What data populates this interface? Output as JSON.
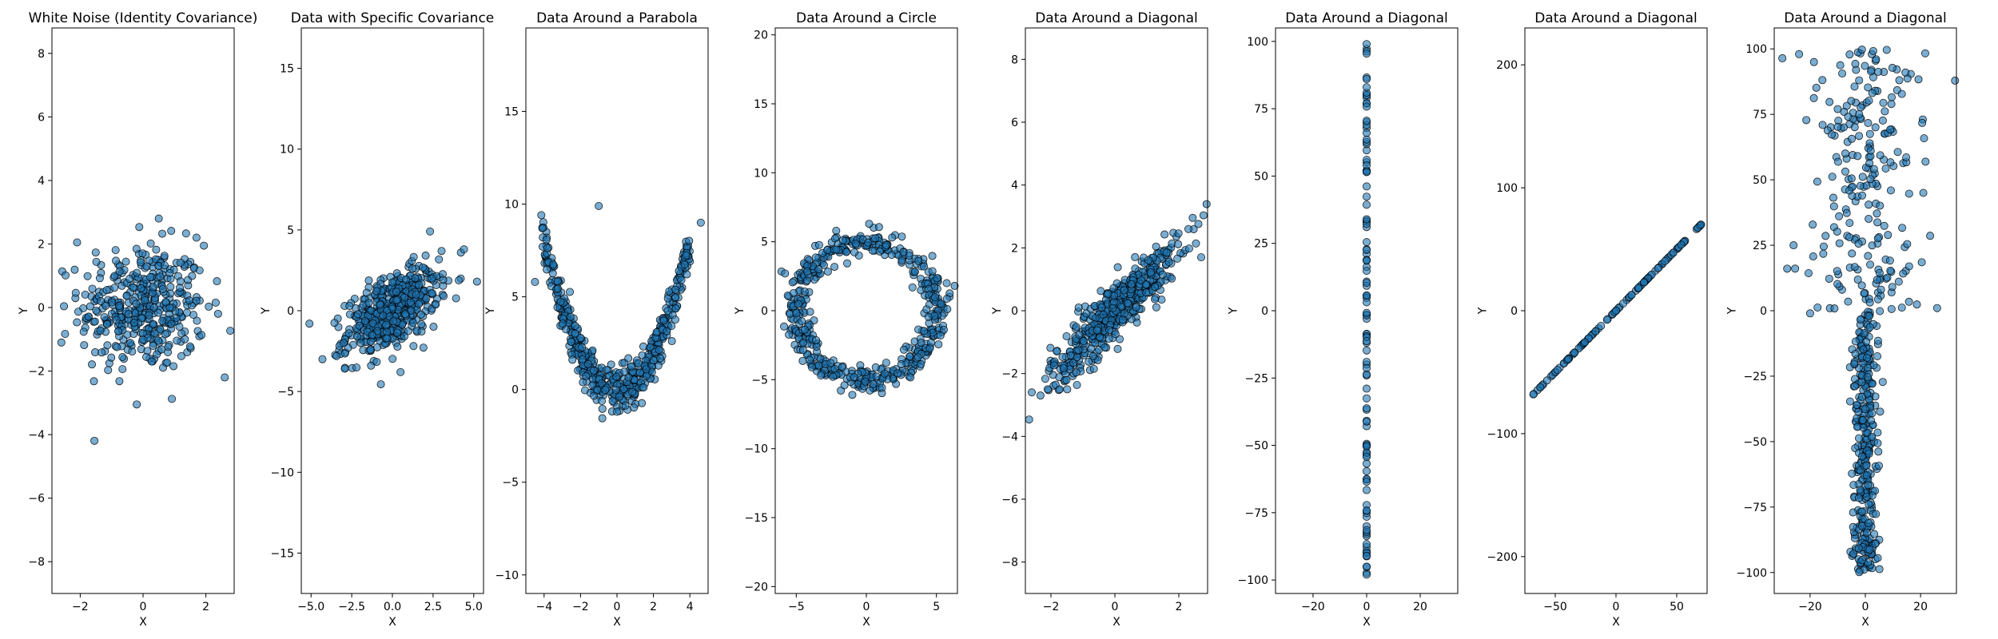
{
  "figure": {
    "marker_color": "#1f77b4",
    "edge_color": "#000000",
    "alpha": 0.6
  },
  "chart_data": [
    {
      "type": "scatter",
      "title": "White Noise (Identity Covariance)",
      "xlabel": "X",
      "ylabel": "Y",
      "xlim": [
        -2.9,
        2.9
      ],
      "ylim": [
        -9,
        8.8
      ],
      "xticks": [
        -2,
        0,
        2
      ],
      "yticks": [
        -8,
        -6,
        -4,
        -2,
        0,
        2,
        4,
        6,
        8
      ],
      "xtick_labels": [
        "−2",
        "0",
        "2"
      ],
      "ytick_labels": [
        "−8",
        "−6",
        "−4",
        "−2",
        "0",
        "2",
        "4",
        "6",
        "8"
      ],
      "grid": false,
      "n_points": 400,
      "pattern": {
        "kind": "gaussian",
        "mx": 0,
        "my": 0,
        "sx": 1,
        "sy": 1,
        "rho": 0
      },
      "points": [
        [
          -2.1,
          2.05
        ],
        [
          0.5,
          2.8
        ],
        [
          2.6,
          -2.2
        ],
        [
          -0.2,
          -3.05
        ],
        [
          1.7,
          2.2
        ],
        [
          -2.6,
          -1.1
        ]
      ]
    },
    {
      "type": "scatter",
      "title": "Data with Specific Covariance",
      "xlabel": "X",
      "ylabel": "Y",
      "xlim": [
        -5.6,
        5.6
      ],
      "ylim": [
        -17.5,
        17.5
      ],
      "xticks": [
        -5,
        -2.5,
        0,
        2.5,
        5
      ],
      "yticks": [
        -15,
        -10,
        -5,
        0,
        5,
        10,
        15
      ],
      "xtick_labels": [
        "−5.0",
        "−2.5",
        "0.0",
        "2.5",
        "5.0"
      ],
      "ytick_labels": [
        "−15",
        "−10",
        "−5",
        "0",
        "5",
        "10",
        "15"
      ],
      "grid": false,
      "n_points": 500,
      "pattern": {
        "kind": "gaussian",
        "mx": 0,
        "my": 0,
        "sx": 1.4,
        "sy": 1.3,
        "rho": 0.55
      },
      "points": [
        [
          -5.1,
          -0.8
        ],
        [
          5.2,
          1.8
        ],
        [
          -4.3,
          -3.0
        ],
        [
          4.4,
          3.8
        ],
        [
          0.5,
          -3.8
        ]
      ]
    },
    {
      "type": "scatter",
      "title": "Data Around a Parabola",
      "xlabel": "X",
      "ylabel": "Y",
      "xlim": [
        -5.0,
        5.0
      ],
      "ylim": [
        -11,
        19.5
      ],
      "xticks": [
        -4,
        -2,
        0,
        2,
        4
      ],
      "yticks": [
        -10,
        -5,
        0,
        5,
        10,
        15
      ],
      "xtick_labels": [
        "−4",
        "−2",
        "0",
        "2",
        "4"
      ],
      "ytick_labels": [
        "−10",
        "−5",
        "0",
        "5",
        "10",
        "15"
      ],
      "grid": false,
      "n_points": 500,
      "pattern": {
        "kind": "parabola",
        "a": 0.5,
        "noise": 0.6
      },
      "points": [
        [
          -4.1,
          8.7
        ],
        [
          -1.0,
          9.9
        ],
        [
          4.6,
          9.0
        ],
        [
          -4.5,
          5.8
        ],
        [
          0.0,
          -1.2
        ]
      ]
    },
    {
      "type": "scatter",
      "title": "Data Around a Circle",
      "xlabel": "X",
      "ylabel": "Y",
      "xlim": [
        -6.5,
        6.5
      ],
      "ylim": [
        -20.5,
        20.5
      ],
      "xticks": [
        -5,
        0,
        5
      ],
      "yticks": [
        -20,
        -15,
        -10,
        -5,
        0,
        5,
        10,
        15,
        20
      ],
      "xtick_labels": [
        "−5",
        "0",
        "5"
      ],
      "ytick_labels": [
        "−20",
        "−15",
        "−10",
        "−5",
        "0",
        "5",
        "10",
        "15",
        "20"
      ],
      "grid": false,
      "n_points": 500,
      "pattern": {
        "kind": "circle",
        "r": 5,
        "noise": 0.45
      },
      "points": [
        [
          6.3,
          1.8
        ],
        [
          -5.8,
          2.7
        ],
        [
          0.2,
          6.3
        ],
        [
          -1.0,
          -6.1
        ]
      ]
    },
    {
      "type": "scatter",
      "title": "Data Around a Diagonal",
      "xlabel": "X",
      "ylabel": "Y",
      "xlim": [
        -2.8,
        2.9
      ],
      "ylim": [
        -9,
        9
      ],
      "xticks": [
        -2,
        0,
        2
      ],
      "yticks": [
        -8,
        -6,
        -4,
        -2,
        0,
        2,
        4,
        6,
        8
      ],
      "xtick_labels": [
        "−2",
        "0",
        "2"
      ],
      "ytick_labels": [
        "−8",
        "−6",
        "−4",
        "−2",
        "0",
        "2",
        "4",
        "6",
        "8"
      ],
      "grid": false,
      "n_points": 500,
      "pattern": {
        "kind": "diagonal",
        "slope": 1,
        "xsd": 1,
        "noise": 0.45
      },
      "points": [
        [
          -2.6,
          -2.6
        ],
        [
          2.7,
          1.7
        ],
        [
          2.3,
          2.6
        ],
        [
          -2.1,
          -2.5
        ]
      ]
    },
    {
      "type": "scatter",
      "title": "Data Around a Diagonal",
      "xlabel": "X",
      "ylabel": "Y",
      "xlim": [
        -34,
        34
      ],
      "ylim": [
        -105,
        105
      ],
      "xticks": [
        -20,
        0,
        20
      ],
      "yticks": [
        -100,
        -75,
        -50,
        -25,
        0,
        25,
        50,
        75,
        100
      ],
      "xtick_labels": [
        "−20",
        "0",
        "20"
      ],
      "ytick_labels": [
        "−100",
        "−75",
        "−50",
        "−25",
        "0",
        "25",
        "50",
        "75",
        "100"
      ],
      "grid": false,
      "n_points": 110,
      "pattern": {
        "kind": "vertical_line",
        "x": 0,
        "ymin": -98,
        "ymax": 99
      },
      "points": [
        [
          0,
          99
        ],
        [
          0,
          -98
        ],
        [
          0,
          86
        ],
        [
          0,
          -91
        ]
      ]
    },
    {
      "type": "scatter",
      "title": "Data Around a Diagonal",
      "xlabel": "X",
      "ylabel": "Y",
      "xlim": [
        -75,
        75
      ],
      "ylim": [
        -230,
        230
      ],
      "xticks": [
        -50,
        0,
        50
      ],
      "yticks": [
        -200,
        -100,
        0,
        100,
        200
      ],
      "xtick_labels": [
        "−50",
        "0",
        "50"
      ],
      "ytick_labels": [
        "−200",
        "−100",
        "0",
        "100",
        "200"
      ],
      "grid": false,
      "n_points": 110,
      "pattern": {
        "kind": "line",
        "slope": 1,
        "xmin": -68,
        "xmax": 70
      },
      "points": [
        [
          -68,
          -68
        ],
        [
          70,
          70
        ]
      ]
    },
    {
      "type": "scatter",
      "title": "Data Around a Diagonal",
      "xlabel": "X",
      "ylabel": "Y",
      "xlim": [
        -33,
        33
      ],
      "ylim": [
        -108,
        108
      ],
      "xticks": [
        -20,
        0,
        20
      ],
      "yticks": [
        -100,
        -75,
        -50,
        -25,
        0,
        25,
        50,
        75,
        100
      ],
      "xtick_labels": [
        "−20",
        "0",
        "20"
      ],
      "ytick_labels": [
        "−100",
        "−75",
        "−50",
        "−25",
        "0",
        "25",
        "50",
        "75",
        "100"
      ],
      "grid": false,
      "n_points": 560,
      "pattern": {
        "kind": "split",
        "upper_n": 230,
        "upper_xsd": 10,
        "lower_n": 330,
        "lower_xsd": 2.2
      },
      "points": [
        [
          -24,
          98
        ],
        [
          26,
          1
        ],
        [
          -26,
          25
        ],
        [
          21,
          45
        ],
        [
          -20,
          -1
        ]
      ]
    }
  ]
}
